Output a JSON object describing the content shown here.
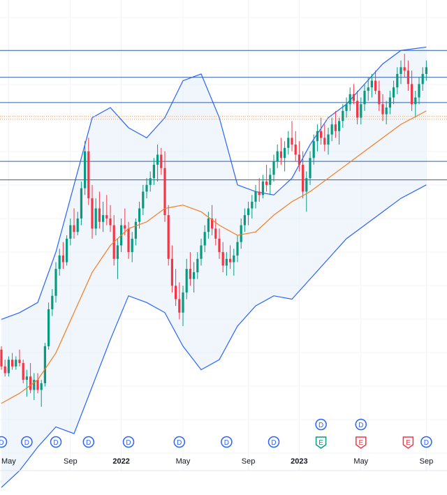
{
  "colors": {
    "up": "#089981",
    "down": "#f23645",
    "band": "#2962ff",
    "band_fill": "#e3effa",
    "ma": "#f57c20",
    "hline": "#2a5fb0",
    "dotted": "#f7a35c",
    "grid": "#f0f3fa",
    "axis_text": "#131722",
    "dividend": "#2962ff",
    "earnings_beat": "#089981",
    "earnings_miss": "#f23645"
  },
  "chart_data": {
    "type": "candlestick",
    "x_ticks": [
      {
        "label": "May",
        "t": 2
      },
      {
        "label": "Sep",
        "t": 19
      },
      {
        "label": "2022",
        "t": 33
      },
      {
        "label": "May",
        "t": 50
      },
      {
        "label": "Sep",
        "t": 68
      },
      {
        "label": "2023",
        "t": 82
      },
      {
        "label": "May",
        "t": 99
      },
      {
        "label": "Sep",
        "t": 117
      }
    ],
    "x_ticks_bold": [
      "2022",
      "2023"
    ],
    "horizontal_lines": [
      {
        "y": 100.0,
        "style": "solid"
      },
      {
        "y": 92.0,
        "style": "solid"
      },
      {
        "y": 84.5,
        "style": "solid"
      },
      {
        "y": 80.4,
        "style": "dotted"
      },
      {
        "y": 79.5,
        "style": "dotted"
      },
      {
        "y": 67.0,
        "style": "solid"
      },
      {
        "y": 61.5,
        "style": "solid"
      }
    ],
    "y_range": [
      -20,
      115
    ],
    "grid": true,
    "candles": [
      [
        0,
        11,
        12,
        5,
        6
      ],
      [
        1,
        6,
        8,
        3,
        4
      ],
      [
        2,
        4,
        9,
        3,
        8
      ],
      [
        3,
        8,
        10,
        5,
        6
      ],
      [
        4,
        6,
        9,
        5,
        8
      ],
      [
        5,
        8,
        11,
        6,
        7
      ],
      [
        6,
        7,
        8,
        1,
        2
      ],
      [
        7,
        2,
        5,
        -3,
        3
      ],
      [
        8,
        3,
        7,
        -2,
        -1
      ],
      [
        9,
        -1,
        4,
        -4,
        2
      ],
      [
        10,
        2,
        4,
        -2,
        -1
      ],
      [
        11,
        -1,
        2,
        -6,
        1
      ],
      [
        12,
        1,
        13,
        0,
        12
      ],
      [
        13,
        12,
        25,
        11,
        23
      ],
      [
        14,
        23,
        29,
        21,
        27
      ],
      [
        15,
        27,
        37,
        25,
        35
      ],
      [
        16,
        35,
        41,
        33,
        39
      ],
      [
        17,
        39,
        43,
        35,
        37
      ],
      [
        18,
        37,
        45,
        36,
        44
      ],
      [
        19,
        44,
        50,
        42,
        48
      ],
      [
        20,
        48,
        53,
        44,
        46
      ],
      [
        21,
        46,
        52,
        45,
        50
      ],
      [
        22,
        50,
        61,
        48,
        59
      ],
      [
        23,
        59,
        73,
        57,
        70
      ],
      [
        24,
        70,
        74,
        54,
        56
      ],
      [
        25,
        56,
        60,
        44,
        47
      ],
      [
        26,
        47,
        56,
        45,
        53
      ],
      [
        27,
        53,
        58,
        47,
        49
      ],
      [
        28,
        49,
        55,
        46,
        51
      ],
      [
        29,
        51,
        57,
        48,
        50
      ],
      [
        30,
        50,
        54,
        46,
        48
      ],
      [
        31,
        48,
        51,
        36,
        38
      ],
      [
        32,
        38,
        44,
        32,
        42
      ],
      [
        33,
        42,
        50,
        40,
        48
      ],
      [
        34,
        48,
        53,
        45,
        47
      ],
      [
        35,
        47,
        49,
        38,
        40
      ],
      [
        36,
        40,
        46,
        37,
        44
      ],
      [
        37,
        44,
        50,
        42,
        49
      ],
      [
        38,
        49,
        55,
        47,
        53
      ],
      [
        39,
        53,
        60,
        51,
        58
      ],
      [
        40,
        58,
        62,
        56,
        60
      ],
      [
        41,
        60,
        64,
        58,
        62
      ],
      [
        42,
        62,
        68,
        60,
        66
      ],
      [
        43,
        66,
        72,
        61,
        69
      ],
      [
        44,
        69,
        71,
        63,
        65
      ],
      [
        45,
        65,
        70,
        49,
        51
      ],
      [
        46,
        51,
        54,
        36,
        38
      ],
      [
        47,
        38,
        42,
        28,
        30
      ],
      [
        48,
        30,
        35,
        24,
        26
      ],
      [
        49,
        26,
        31,
        20,
        22
      ],
      [
        50,
        22,
        30,
        18,
        28
      ],
      [
        51,
        28,
        38,
        26,
        35
      ],
      [
        52,
        35,
        40,
        30,
        32
      ],
      [
        53,
        32,
        37,
        28,
        34
      ],
      [
        54,
        34,
        40,
        32,
        38
      ],
      [
        55,
        38,
        44,
        36,
        42
      ],
      [
        56,
        42,
        48,
        40,
        46
      ],
      [
        57,
        46,
        52,
        44,
        50
      ],
      [
        58,
        50,
        54,
        45,
        47
      ],
      [
        59,
        47,
        50,
        42,
        44
      ],
      [
        60,
        44,
        47,
        38,
        40
      ],
      [
        61,
        40,
        43,
        34,
        36
      ],
      [
        62,
        36,
        40,
        33,
        38
      ],
      [
        63,
        38,
        42,
        35,
        37
      ],
      [
        64,
        37,
        41,
        33,
        39
      ],
      [
        65,
        39,
        45,
        37,
        43
      ],
      [
        66,
        43,
        50,
        41,
        48
      ],
      [
        67,
        48,
        53,
        46,
        51
      ],
      [
        68,
        51,
        55,
        48,
        53
      ],
      [
        69,
        53,
        57,
        50,
        55
      ],
      [
        70,
        55,
        60,
        53,
        58
      ],
      [
        71,
        58,
        62,
        55,
        57
      ],
      [
        72,
        57,
        63,
        56,
        61
      ],
      [
        73,
        61,
        66,
        58,
        60
      ],
      [
        74,
        60,
        65,
        57,
        63
      ],
      [
        75,
        63,
        69,
        61,
        67
      ],
      [
        76,
        67,
        72,
        65,
        70
      ],
      [
        77,
        70,
        74,
        66,
        68
      ],
      [
        78,
        68,
        73,
        64,
        71
      ],
      [
        79,
        71,
        76,
        69,
        74
      ],
      [
        80,
        74,
        79,
        70,
        72
      ],
      [
        81,
        72,
        76,
        67,
        69
      ],
      [
        82,
        69,
        73,
        64,
        66
      ],
      [
        83,
        66,
        70,
        56,
        58
      ],
      [
        84,
        58,
        64,
        52,
        62
      ],
      [
        85,
        62,
        70,
        60,
        68
      ],
      [
        86,
        68,
        75,
        66,
        73
      ],
      [
        87,
        73,
        78,
        70,
        76
      ],
      [
        88,
        76,
        80,
        72,
        74
      ],
      [
        89,
        74,
        78,
        70,
        72
      ],
      [
        90,
        72,
        77,
        69,
        75
      ],
      [
        91,
        75,
        80,
        73,
        78
      ],
      [
        92,
        78,
        82,
        74,
        76
      ],
      [
        93,
        76,
        80,
        72,
        79
      ],
      [
        94,
        79,
        84,
        77,
        82
      ],
      [
        95,
        82,
        86,
        80,
        84
      ],
      [
        96,
        84,
        89,
        82,
        87
      ],
      [
        97,
        87,
        90,
        84,
        85
      ],
      [
        98,
        85,
        88,
        78,
        80
      ],
      [
        99,
        80,
        86,
        78,
        84
      ],
      [
        100,
        84,
        90,
        82,
        88
      ],
      [
        101,
        88,
        92,
        85,
        89
      ],
      [
        102,
        89,
        93,
        86,
        91
      ],
      [
        103,
        91,
        94,
        87,
        88
      ],
      [
        104,
        88,
        91,
        82,
        84
      ],
      [
        105,
        84,
        87,
        79,
        81
      ],
      [
        106,
        81,
        85,
        78,
        83
      ],
      [
        107,
        83,
        88,
        81,
        86
      ],
      [
        108,
        86,
        91,
        84,
        89
      ],
      [
        109,
        89,
        95,
        87,
        93
      ],
      [
        110,
        93,
        97,
        90,
        95
      ],
      [
        111,
        95,
        99,
        92,
        94
      ],
      [
        112,
        94,
        97,
        88,
        90
      ],
      [
        113,
        90,
        94,
        82,
        84
      ],
      [
        114,
        84,
        88,
        80,
        86
      ],
      [
        115,
        86,
        92,
        84,
        90
      ],
      [
        116,
        90,
        95,
        88,
        93
      ],
      [
        117,
        93,
        97,
        91,
        95
      ]
    ],
    "ma": [
      [
        0,
        -5
      ],
      [
        5,
        -2
      ],
      [
        10,
        2
      ],
      [
        15,
        10
      ],
      [
        20,
        22
      ],
      [
        25,
        34
      ],
      [
        30,
        42
      ],
      [
        35,
        47
      ],
      [
        40,
        49
      ],
      [
        45,
        53
      ],
      [
        50,
        54
      ],
      [
        55,
        52
      ],
      [
        60,
        48
      ],
      [
        65,
        45
      ],
      [
        70,
        46
      ],
      [
        75,
        51
      ],
      [
        80,
        55
      ],
      [
        85,
        58
      ],
      [
        90,
        62
      ],
      [
        95,
        66
      ],
      [
        100,
        70
      ],
      [
        105,
        74
      ],
      [
        110,
        78
      ],
      [
        117,
        82
      ]
    ],
    "band_upper": [
      [
        0,
        20
      ],
      [
        5,
        22
      ],
      [
        10,
        25
      ],
      [
        15,
        40
      ],
      [
        20,
        60
      ],
      [
        25,
        80
      ],
      [
        30,
        83
      ],
      [
        35,
        77
      ],
      [
        40,
        74
      ],
      [
        45,
        80
      ],
      [
        50,
        91
      ],
      [
        55,
        93
      ],
      [
        60,
        80
      ],
      [
        65,
        60
      ],
      [
        70,
        58
      ],
      [
        75,
        57
      ],
      [
        80,
        62
      ],
      [
        85,
        72
      ],
      [
        90,
        80
      ],
      [
        95,
        84
      ],
      [
        100,
        90
      ],
      [
        105,
        96
      ],
      [
        110,
        100
      ],
      [
        117,
        101
      ]
    ],
    "band_lower": [
      [
        0,
        -30
      ],
      [
        5,
        -25
      ],
      [
        10,
        -18
      ],
      [
        15,
        -12
      ],
      [
        20,
        -14
      ],
      [
        25,
        0
      ],
      [
        30,
        14
      ],
      [
        35,
        27
      ],
      [
        40,
        25
      ],
      [
        45,
        22
      ],
      [
        50,
        12
      ],
      [
        55,
        5
      ],
      [
        60,
        8
      ],
      [
        65,
        18
      ],
      [
        70,
        24
      ],
      [
        75,
        27
      ],
      [
        80,
        26
      ],
      [
        85,
        32
      ],
      [
        90,
        38
      ],
      [
        95,
        44
      ],
      [
        100,
        48
      ],
      [
        105,
        52
      ],
      [
        110,
        56
      ],
      [
        117,
        60
      ]
    ],
    "events_row1": [
      {
        "t": 0,
        "letter": "D",
        "kind": "dividend"
      },
      {
        "t": 7,
        "letter": "D",
        "kind": "dividend"
      },
      {
        "t": 15,
        "letter": "D",
        "kind": "dividend"
      },
      {
        "t": 24,
        "letter": "D",
        "kind": "dividend"
      },
      {
        "t": 35,
        "letter": "D",
        "kind": "dividend"
      },
      {
        "t": 49,
        "letter": "D",
        "kind": "dividend"
      },
      {
        "t": 62,
        "letter": "D",
        "kind": "dividend"
      },
      {
        "t": 75,
        "letter": "D",
        "kind": "dividend"
      },
      {
        "t": 88,
        "letter": "E",
        "kind": "earnings_beat"
      },
      {
        "t": 99,
        "letter": "E",
        "kind": "earnings_miss"
      },
      {
        "t": 112,
        "letter": "E",
        "kind": "earnings_miss"
      },
      {
        "t": 117,
        "letter": "D",
        "kind": "dividend"
      }
    ],
    "events_row2": [
      {
        "t": 88,
        "letter": "D",
        "kind": "dividend"
      },
      {
        "t": 99,
        "letter": "D",
        "kind": "dividend"
      }
    ]
  }
}
